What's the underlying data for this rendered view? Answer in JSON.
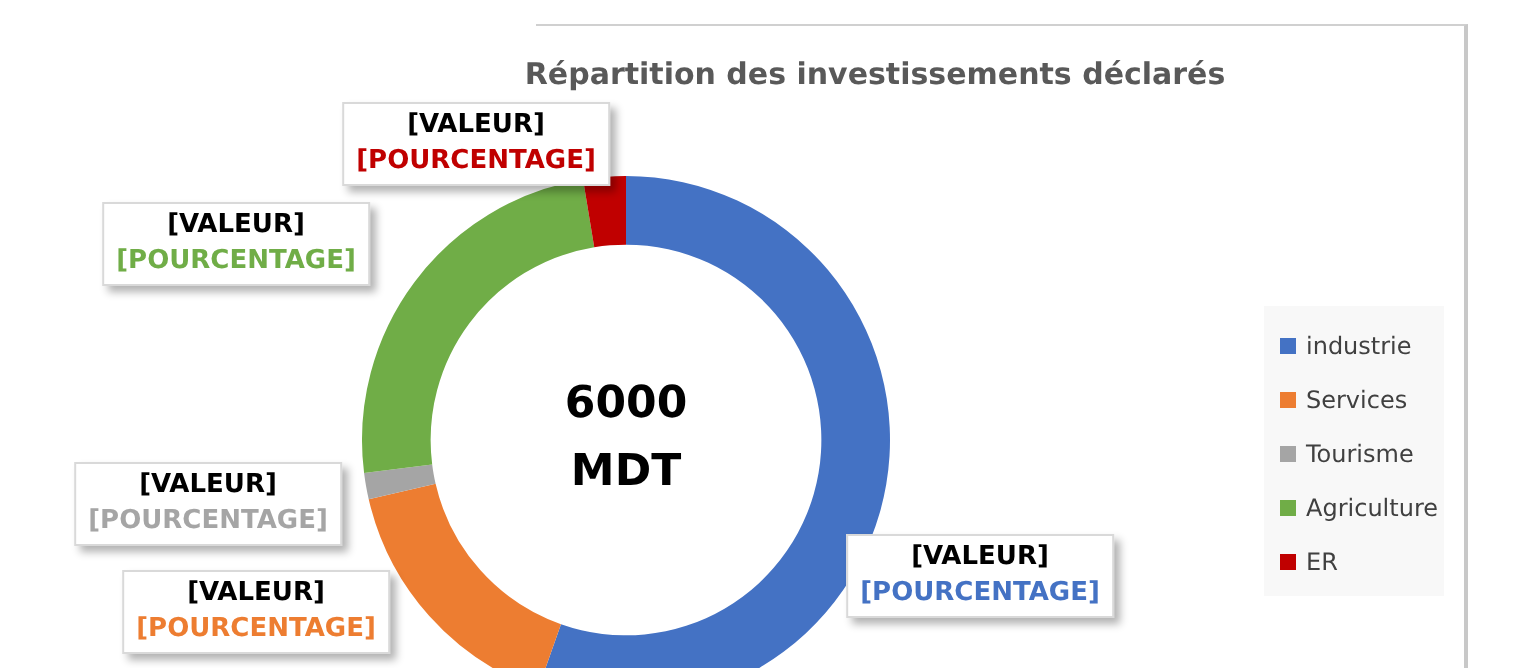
{
  "chart_data": {
    "type": "donut",
    "title": "Répartition des investissements déclarés",
    "categories": [
      "industrie",
      "Services",
      "Tourisme",
      "Agriculture",
      "ER"
    ],
    "values": [
      55.4,
      16.0,
      1.6,
      24.4,
      2.6
    ],
    "colors": [
      "#4472c4",
      "#ed7d31",
      "#a5a5a5",
      "#70ad47",
      "#c00000"
    ],
    "value_labels": [
      "[VALEUR]\n[POURCENTAGE]",
      "[VALEUR]\n[POURCENTAGE]",
      "[VALEUR]\n[POURCENTAGE]",
      "[VALEUR]\n[POURCENTAGE]",
      "[VALEUR]\n[POURCENTAGE]"
    ],
    "annotations": [
      "6000\nMDT"
    ],
    "legend": "right"
  }
}
